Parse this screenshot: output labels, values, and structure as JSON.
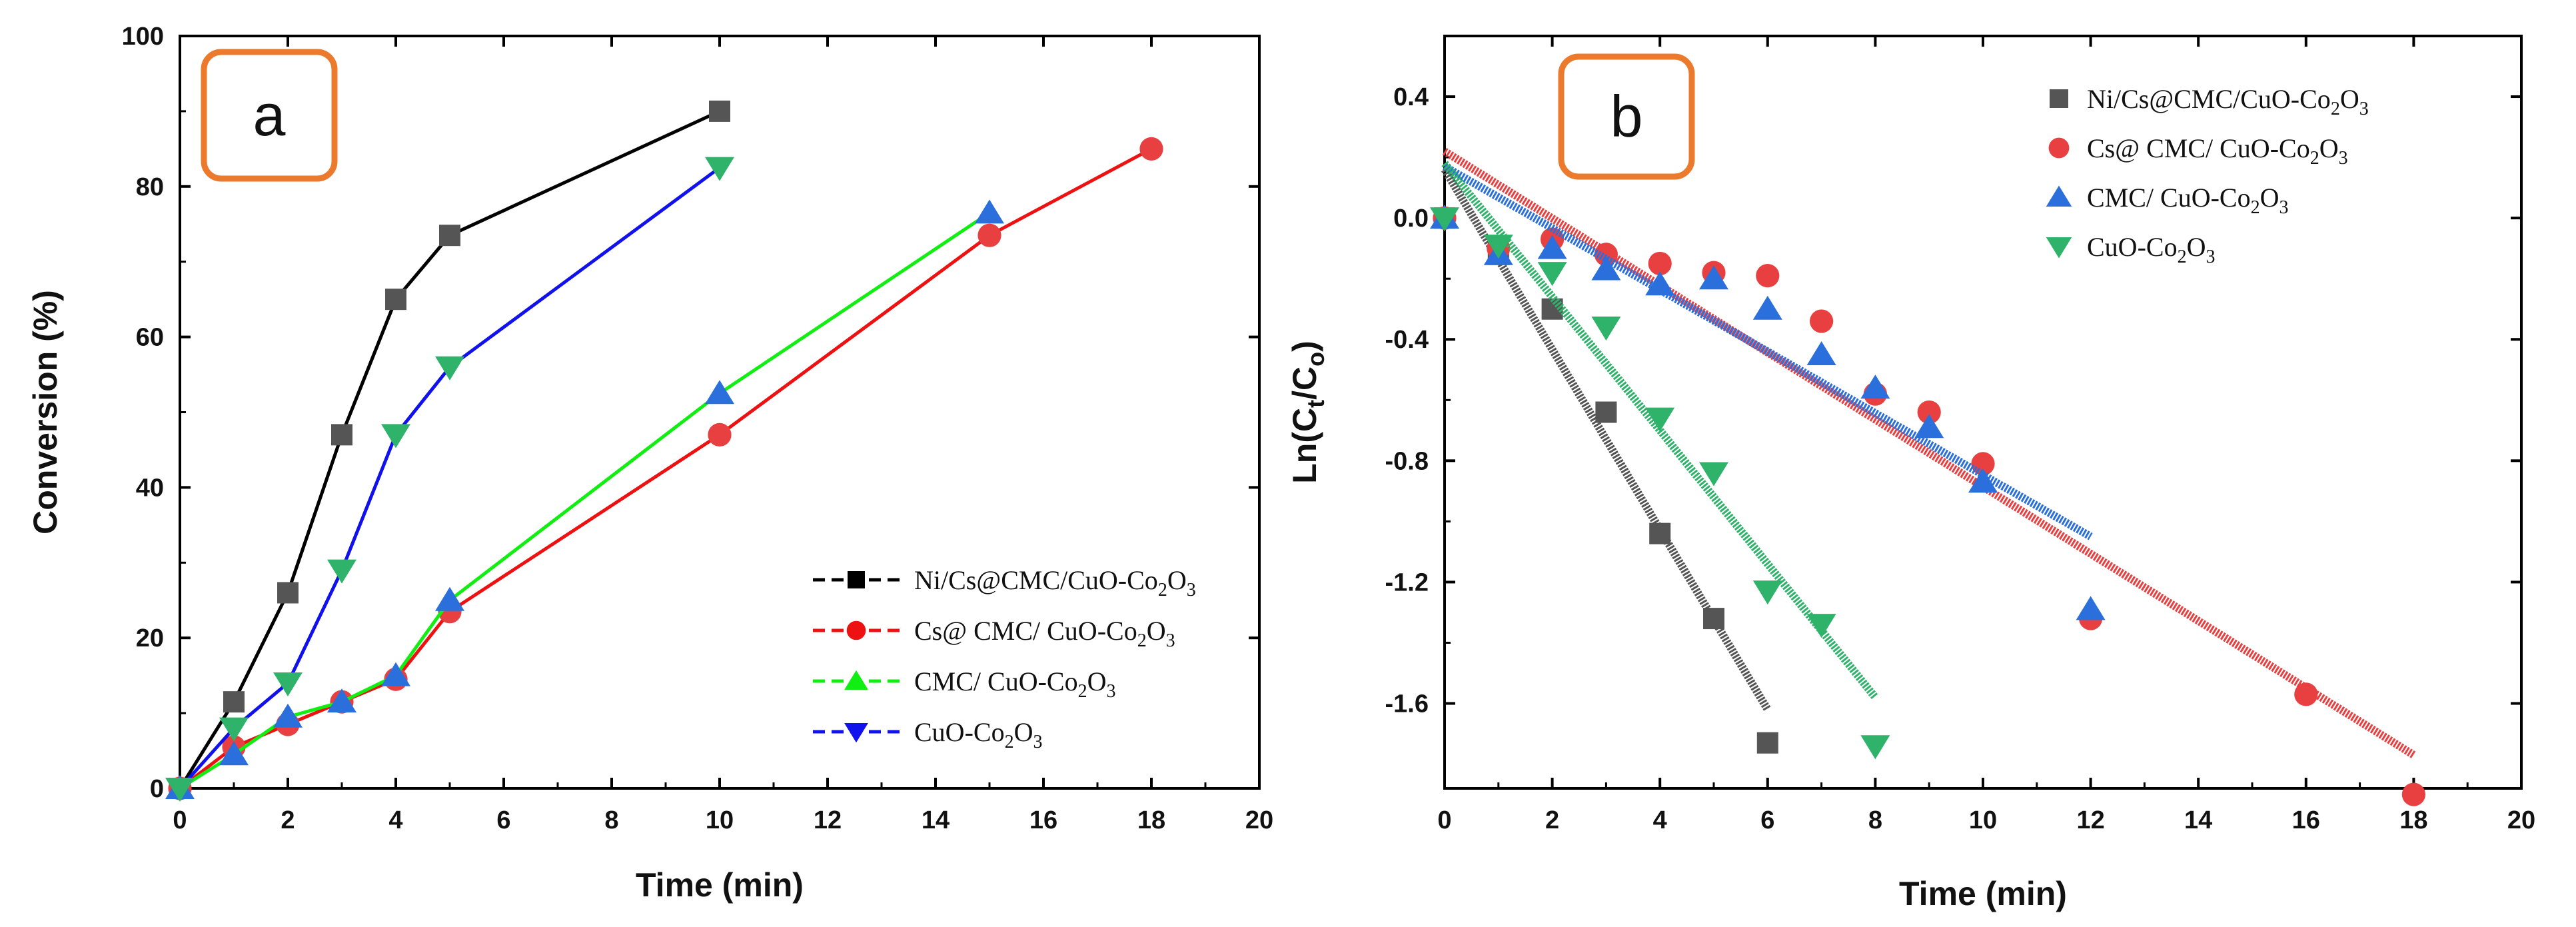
{
  "chart_data": [
    {
      "type": "line",
      "panel_label": "a",
      "xlabel": "Time (min)",
      "ylabel": "Conversion (%)",
      "xlim": [
        0,
        20
      ],
      "ylim": [
        0,
        100
      ],
      "xticks": [
        0,
        2,
        4,
        6,
        8,
        10,
        12,
        14,
        16,
        18,
        20
      ],
      "yticks": [
        0,
        20,
        40,
        60,
        80,
        100
      ],
      "legend_position": "bottom-right",
      "series": [
        {
          "name": "Ni/Cs@CMC/CuO-Co2O3",
          "color": "#000000",
          "marker_color": "#555555",
          "marker": "square",
          "x": [
            0,
            1,
            2,
            3,
            4,
            5,
            10
          ],
          "y": [
            0,
            11.5,
            26,
            47,
            65,
            73.5,
            90
          ]
        },
        {
          "name": "Cs@ CMC/ CuO-Co2O3",
          "color": "#ee1111",
          "marker_color": "#e84040",
          "marker": "circle",
          "x": [
            0,
            1,
            2,
            3,
            4,
            5,
            10,
            15,
            18
          ],
          "y": [
            0,
            5.5,
            8.5,
            11.5,
            14.5,
            23.5,
            47,
            73.5,
            85
          ]
        },
        {
          "name": "CMC/ CuO-Co2O3",
          "color": "#11ee11",
          "marker_color": "#2a6fdb",
          "marker": "triangle-up",
          "x": [
            0,
            1,
            2,
            3,
            4,
            5,
            10,
            15
          ],
          "y": [
            0,
            4.5,
            9.5,
            11.5,
            15,
            25,
            52.5,
            76.5
          ]
        },
        {
          "name": "CuO-Co2O3",
          "color": "#1111ee",
          "marker_color": "#2fb36b",
          "marker": "triangle-down",
          "x": [
            0,
            1,
            2,
            3,
            4,
            5,
            10
          ],
          "y": [
            0,
            8,
            14,
            29,
            47,
            56,
            82.5
          ]
        }
      ]
    },
    {
      "type": "scatter",
      "panel_label": "b",
      "xlabel": "Time (min)",
      "ylabel": "Ln(Ct/Co)",
      "xlim": [
        0,
        20
      ],
      "ylim": [
        -1.88,
        0.6
      ],
      "xticks": [
        0,
        2,
        4,
        6,
        8,
        10,
        12,
        14,
        16,
        18,
        20
      ],
      "yticks": [
        -1.6,
        -1.2,
        -0.8,
        -0.4,
        0.0,
        0.4
      ],
      "ytick_labels": [
        "-1.6",
        "-1.2",
        "-0.8",
        "-0.4",
        "0.0",
        "0.4"
      ],
      "legend_position": "top-right",
      "series": [
        {
          "name": "Ni/Cs@CMC/CuO-Co2O3",
          "color": "#555555",
          "marker": "square",
          "x": [
            0,
            1,
            2,
            3,
            4,
            5,
            6
          ],
          "y": [
            0,
            -0.12,
            -0.3,
            -0.64,
            -1.04,
            -1.32,
            -1.73
          ],
          "fit": {
            "x": [
              0,
              6
            ],
            "y": [
              0.16,
              -1.62
            ]
          }
        },
        {
          "name": "Cs@ CMC/ CuO-Co2O3",
          "color": "#e84040",
          "marker": "circle",
          "x": [
            0,
            1,
            2,
            3,
            4,
            5,
            6,
            7,
            8,
            9,
            10,
            12,
            16,
            18
          ],
          "y": [
            0,
            -0.1,
            -0.07,
            -0.12,
            -0.15,
            -0.18,
            -0.19,
            -0.34,
            -0.58,
            -0.64,
            -0.81,
            -1.32,
            -1.57,
            -1.9
          ],
          "fit": {
            "x": [
              0,
              18
            ],
            "y": [
              0.22,
              -1.77
            ]
          }
        },
        {
          "name": "CMC/ CuO-Co2O3",
          "color": "#2a6fdb",
          "marker": "triangle-up",
          "x": [
            0,
            1,
            2,
            3,
            4,
            5,
            6,
            7,
            8,
            9,
            10,
            12
          ],
          "y": [
            0,
            -0.12,
            -0.1,
            -0.17,
            -0.22,
            -0.2,
            -0.3,
            -0.45,
            -0.56,
            -0.69,
            -0.87,
            -1.29
          ],
          "fit": {
            "x": [
              0,
              12
            ],
            "y": [
              0.17,
              -1.05
            ]
          }
        },
        {
          "name": "CuO-Co2O3",
          "color": "#2fb36b",
          "marker": "triangle-down",
          "x": [
            0,
            1,
            2,
            3,
            4,
            5,
            6,
            7,
            8
          ],
          "y": [
            0,
            -0.09,
            -0.18,
            -0.36,
            -0.66,
            -0.84,
            -1.23,
            -1.34,
            -1.74
          ],
          "fit": {
            "x": [
              0,
              8
            ],
            "y": [
              0.18,
              -1.58
            ]
          }
        }
      ]
    }
  ]
}
